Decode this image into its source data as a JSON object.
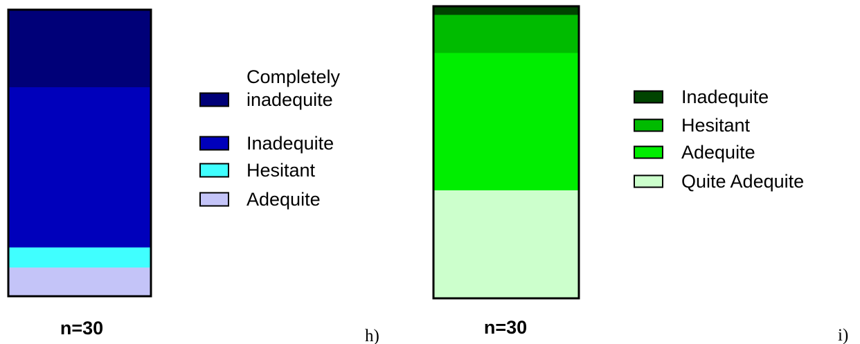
{
  "chart_data": [
    {
      "type": "bar",
      "stacked": true,
      "normalized": true,
      "panel_label": "h)",
      "n_label": "n=30",
      "categories": [
        "n=30"
      ],
      "series": [
        {
          "name": "Adequite",
          "values": [
            10
          ],
          "color": "#c4c4f8"
        },
        {
          "name": "Hesitant",
          "values": [
            7
          ],
          "color": "#40ffff"
        },
        {
          "name": "Inadequite",
          "values": [
            56
          ],
          "color": "#0000bb"
        },
        {
          "name": "Completely inadequite",
          "values": [
            27
          ],
          "color": "#000078"
        }
      ],
      "legend": [
        {
          "lines": [
            "Completely",
            "inadequite"
          ],
          "color": "#000078"
        },
        {
          "lines": [
            "Inadequite"
          ],
          "color": "#0000bb"
        },
        {
          "lines": [
            "Hesitant"
          ],
          "color": "#40ffff"
        },
        {
          "lines": [
            "Adequite"
          ],
          "color": "#c4c4f8"
        }
      ],
      "legend_position": "right",
      "ylim": [
        0,
        100
      ],
      "grid": false
    },
    {
      "type": "bar",
      "stacked": true,
      "normalized": true,
      "panel_label": "i)",
      "n_label": "n=30",
      "categories": [
        "n=30"
      ],
      "series": [
        {
          "name": "Quite Adequite",
          "values": [
            37
          ],
          "color": "#ccffcc"
        },
        {
          "name": "Adequite",
          "values": [
            47
          ],
          "color": "#00ee00"
        },
        {
          "name": "Hesitant",
          "values": [
            13
          ],
          "color": "#00bb00"
        },
        {
          "name": "Inadequite",
          "values": [
            3
          ],
          "color": "#004400"
        }
      ],
      "legend": [
        {
          "lines": [
            "Inadequite"
          ],
          "color": "#004400"
        },
        {
          "lines": [
            "Hesitant"
          ],
          "color": "#00bb00"
        },
        {
          "lines": [
            "Adequite"
          ],
          "color": "#00ee00"
        },
        {
          "lines": [
            "Quite Adequite"
          ],
          "color": "#ccffcc"
        }
      ],
      "legend_position": "right",
      "ylim": [
        0,
        100
      ],
      "grid": false
    }
  ]
}
